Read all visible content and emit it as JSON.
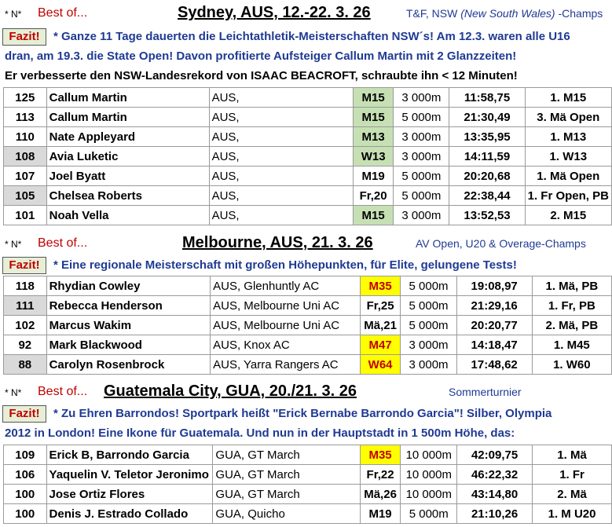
{
  "sections": [
    {
      "marker": "* N*",
      "best_of": "Best of...",
      "title": "Sydney, AUS, 12.-22. 3. 26",
      "subtitle_a": "T&F, NSW ",
      "subtitle_b": "(New South Wales)",
      "subtitle_c": " -Champs",
      "fazit_label": "Fazit!",
      "fazit_lines": [
        "* Ganze 11 Tage dauerten die Leichtathletik-Meisterschaften NSW´s! Am 12.3. waren alle U16",
        "dran, am 19.3. die State Open! Davon profitierte Aufsteiger Callum Martin mit 2 Glanzzeiten!"
      ],
      "black_line": "Er verbesserte den NSW-Landesrekord von ISAAC BEACROFT, schraubte ihn < 12 Minuten!",
      "rows": [
        {
          "num": "125",
          "name": "Callum Martin",
          "club": "AUS,",
          "cls": "M15",
          "dist": "3 000m",
          "time": "11:58,75",
          "place": "1. M15"
        },
        {
          "num": "113",
          "name": "Callum Martin",
          "club": "AUS,",
          "cls": "M15",
          "dist": "5 000m",
          "time": "21:30,49",
          "place": "3. Mä Open"
        },
        {
          "num": "110",
          "name": "Nate Appleyard",
          "club": "AUS,",
          "cls": "M13",
          "dist": "3 000m",
          "time": "13:35,95",
          "place": "1. M13"
        },
        {
          "num": "108",
          "name": "Avia Luketic",
          "club": "AUS,",
          "cls": "W13",
          "dist": "3 000m",
          "time": "14:11,59",
          "place": "1. W13"
        },
        {
          "num": "107",
          "name": "Joel Byatt",
          "club": "AUS,",
          "cls": "M19",
          "dist": "5 000m",
          "time": "20:20,68",
          "place": "1. Mä Open"
        },
        {
          "num": "105",
          "name": "Chelsea Roberts",
          "club": "AUS,",
          "cls": "Fr,20",
          "dist": "5 000m",
          "time": "22:38,44",
          "place": "1. Fr Open, PB"
        },
        {
          "num": "101",
          "name": "Noah Vella",
          "club": "AUS,",
          "cls": "M15",
          "dist": "3 000m",
          "time": "13:52,53",
          "place": "2. M15"
        }
      ]
    },
    {
      "marker": "* N*",
      "best_of": "Best of...",
      "title": "Melbourne, AUS, 21. 3. 26",
      "subtitle": "AV Open, U20 & Overage-Champs",
      "fazit_label": "Fazit!",
      "fazit_lines": [
        "* Eine regionale Meisterschaft mit großen Höhepunkten, für Elite, gelungene Tests!"
      ],
      "rows": [
        {
          "num": "118",
          "name": "Rhydian Cowley",
          "club": "AUS, Glenhuntly AC",
          "cls": "M35",
          "dist": "5 000m",
          "time": "19:08,97",
          "place": "1. Mä, PB"
        },
        {
          "num": "111",
          "name": "Rebecca Henderson",
          "club": "AUS, Melbourne Uni AC",
          "cls": "Fr,25",
          "dist": "5 000m",
          "time": "21:29,16",
          "place": "1. Fr, PB"
        },
        {
          "num": "102",
          "name": "Marcus Wakim",
          "club": "AUS, Melbourne Uni AC",
          "cls": "Mä,21",
          "dist": "5 000m",
          "time": "20:20,77",
          "place": "2. Mä, PB"
        },
        {
          "num": "92",
          "name": "Mark Blackwood",
          "club": "AUS, Knox AC",
          "cls": "M47",
          "dist": "3 000m",
          "time": "14:18,47",
          "place": "1. M45"
        },
        {
          "num": "88",
          "name": "Carolyn Rosenbrock",
          "club": "AUS, Yarra Rangers AC",
          "cls": "W64",
          "dist": "3 000m",
          "time": "17:48,62",
          "place": "1. W60"
        }
      ]
    },
    {
      "marker": "* N*",
      "best_of": "Best of...",
      "title": "Guatemala City, GUA, 20./21. 3. 26",
      "subtitle": "Sommerturnier",
      "fazit_label": "Fazit!",
      "fazit_lines": [
        "* Zu Ehren Barrondos! Sportpark heißt \"Erick Bernabe Barrondo Garcia\"! Silber, Olympia",
        "2012 in London! Eine Ikone für Guatemala. Und nun in der Hauptstadt in 1 500m Höhe, das:"
      ],
      "rows": [
        {
          "num": "109",
          "name": "Erick B, Barrondo Garcia",
          "club": "GUA, GT March",
          "cls": "M35",
          "dist": "10 000m",
          "time": "42:09,75",
          "place": "1. Mä"
        },
        {
          "num": "106",
          "name": "Yaquelin V. Teletor Jeronimo",
          "club": "GUA, GT March",
          "cls": "Fr,22",
          "dist": "10 000m",
          "time": "46:22,32",
          "place": "1. Fr"
        },
        {
          "num": "100",
          "name": "Jose Ortiz Flores",
          "club": "GUA, GT March",
          "cls": "Mä,26",
          "dist": "10 000m",
          "time": "43:14,80",
          "place": "2. Mä"
        },
        {
          "num": "100",
          "name": "Denis J. Estrado Collado",
          "club": "GUA, Quicho",
          "cls": "M19",
          "dist": "5 000m",
          "time": "21:10,26",
          "place": "1. M U20"
        }
      ]
    }
  ]
}
